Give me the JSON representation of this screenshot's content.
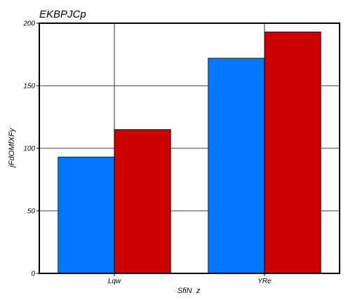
{
  "chart_data": {
    "type": "bar",
    "title": "EKBPJCp",
    "xlabel": "SfiN  z",
    "ylabel": "jFdOMfXFy",
    "categories": [
      "Lqw",
      "YRe"
    ],
    "series": [
      {
        "values": [
          93,
          172
        ],
        "color": "#0077ff"
      },
      {
        "values": [
          115,
          193
        ],
        "color": "#cc0000"
      }
    ],
    "ylim": [
      0,
      200
    ],
    "yticks": [
      0,
      50,
      100,
      150,
      200
    ],
    "grid": true,
    "legend": "none"
  }
}
